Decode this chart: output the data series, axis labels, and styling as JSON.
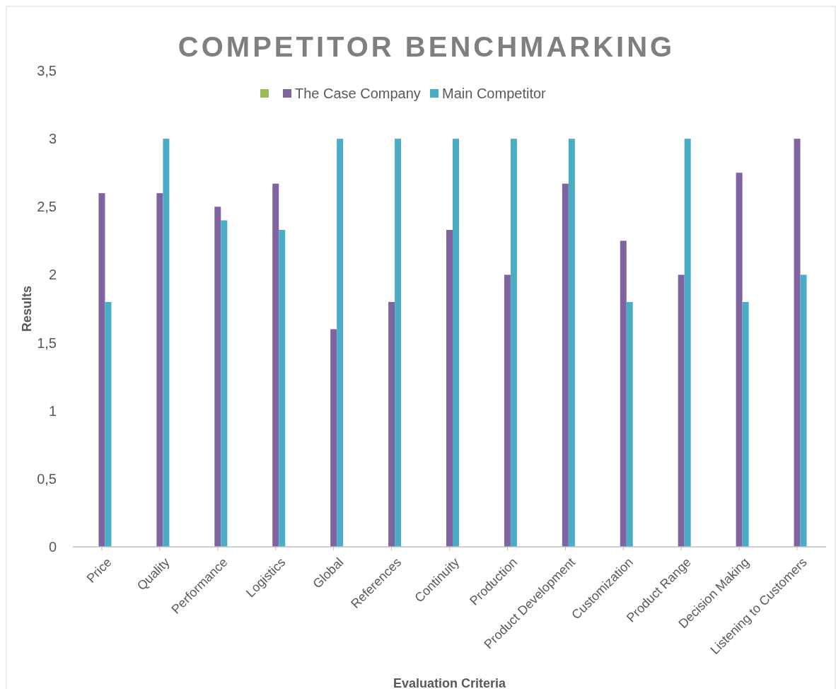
{
  "chart_data": {
    "type": "bar",
    "title": "COMPETITOR BENCHMARKING",
    "xlabel": "Evaluation Criteria",
    "ylabel": "Results",
    "categories": [
      "Price",
      "Quality",
      "Performance",
      "Logistics",
      "Global",
      "References",
      "Continuity",
      "Production",
      "Product Development",
      "Customization",
      "Product Range",
      "Decision Making",
      "Listening to Customers"
    ],
    "series": [
      {
        "color": "#9bbb59",
        "values": [
          null,
          null,
          null,
          null,
          null,
          null,
          null,
          null,
          null,
          null,
          null,
          null,
          null
        ]
      },
      {
        "name": "The Case Company",
        "color": "#8064a2",
        "values": [
          2.6,
          2.6,
          2.5,
          2.67,
          1.6,
          1.8,
          2.33,
          2.0,
          2.67,
          2.25,
          2.0,
          2.75,
          3
        ]
      },
      {
        "name": "Main Competitor",
        "color": "#4bacc6",
        "values": [
          1.8,
          3,
          2.4,
          2.33,
          3,
          3,
          3,
          3,
          3,
          1.8,
          3,
          1.8,
          2.0
        ]
      }
    ],
    "ylim": [
      0,
      3.5
    ],
    "yticks": [
      0,
      {
        "value": 0.5,
        "label": "0,5"
      },
      1,
      {
        "value": 1.5,
        "label": "1,5"
      },
      2,
      {
        "value": 2.5,
        "label": "2,5"
      },
      3,
      {
        "value": 3.5,
        "label": "3,5"
      }
    ],
    "legend": "top",
    "grid": false
  }
}
